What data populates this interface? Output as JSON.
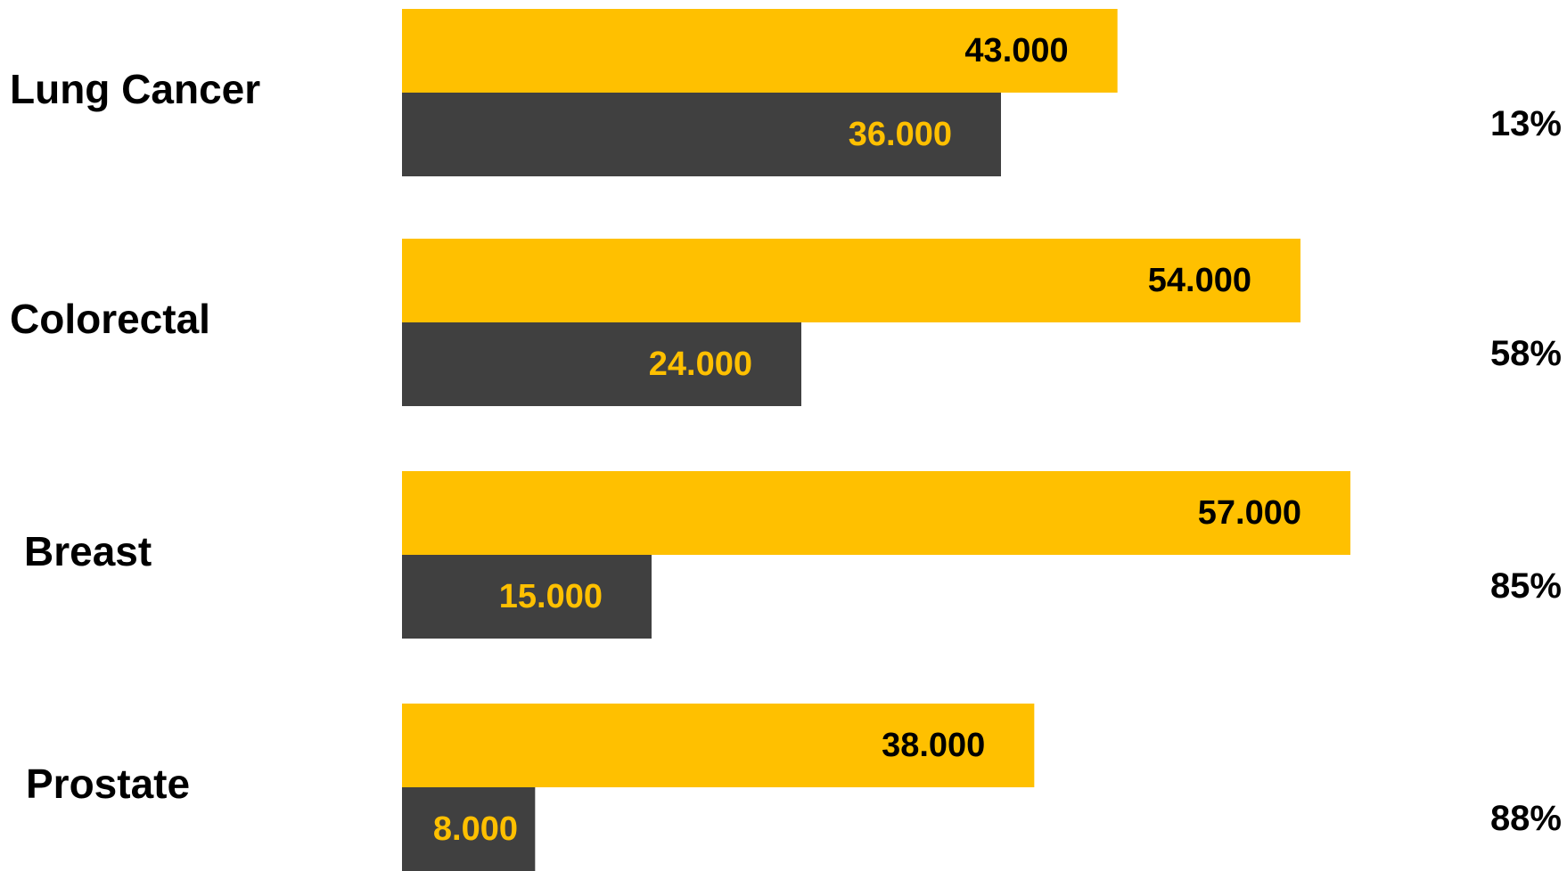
{
  "chart_data": {
    "type": "bar",
    "orientation": "horizontal",
    "categories": [
      "Lung Cancer",
      "Colorectal",
      "Breast",
      "Prostate"
    ],
    "series": [
      {
        "color": "#FFC000",
        "label_color": "#000000",
        "values": [
          43000,
          54000,
          57000,
          38000
        ],
        "value_labels": [
          "43.000",
          "54.000",
          "57.000",
          "38.000"
        ]
      },
      {
        "color": "#404040",
        "label_color": "#FFC000",
        "values": [
          36000,
          24000,
          15000,
          8000
        ],
        "value_labels": [
          "36.000",
          "24.000",
          "15.000",
          "8.000"
        ]
      }
    ],
    "percentages": {
      "values": [
        13,
        58,
        85,
        88
      ],
      "value_labels": [
        "13%",
        "58%",
        "85%",
        "88%"
      ]
    },
    "xlim": [
      0,
      60000
    ]
  }
}
